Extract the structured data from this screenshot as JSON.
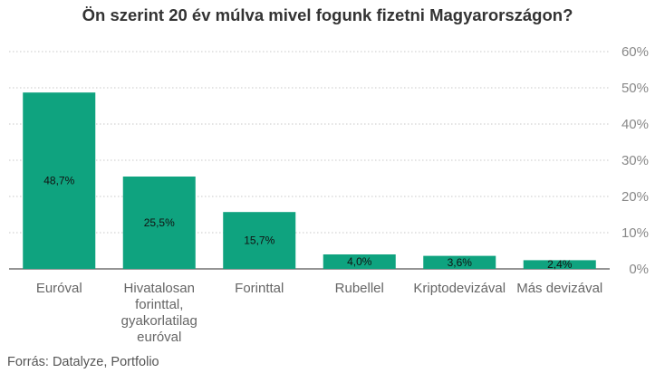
{
  "chart_data": {
    "type": "bar",
    "title": "Ön szerint 20 év múlva mivel fogunk fizetni Magyarországon?",
    "categories": [
      "Euróval",
      "Hivatalosan forinttal, gyakorlatilag euróval",
      "Forinttal",
      "Rubellel",
      "Kriptodevizával",
      "Más devizával"
    ],
    "category_lines": [
      [
        "Euróval"
      ],
      [
        "Hivatalosan",
        "forinttal,",
        "gyakorlatilag",
        "euróval"
      ],
      [
        "Forinttal"
      ],
      [
        "Rubellel"
      ],
      [
        "Kriptodevizával"
      ],
      [
        "Más devizával"
      ]
    ],
    "values": [
      48.7,
      25.5,
      15.7,
      4.0,
      3.6,
      2.4
    ],
    "data_labels": [
      "48,7%",
      "25,5%",
      "15,7%",
      "4,0%",
      "3,6%",
      "2,4%"
    ],
    "yticks": [
      "0%",
      "10%",
      "20%",
      "30%",
      "40%",
      "50%",
      "60%"
    ],
    "ylim": [
      0,
      60
    ],
    "ytick_step": 10,
    "y_axis_side": "right",
    "grid": true,
    "bar_color": "#0fa37f",
    "grid_color": "#c8c8c8",
    "source": "Forrás: Datalyze, Portfolio"
  }
}
